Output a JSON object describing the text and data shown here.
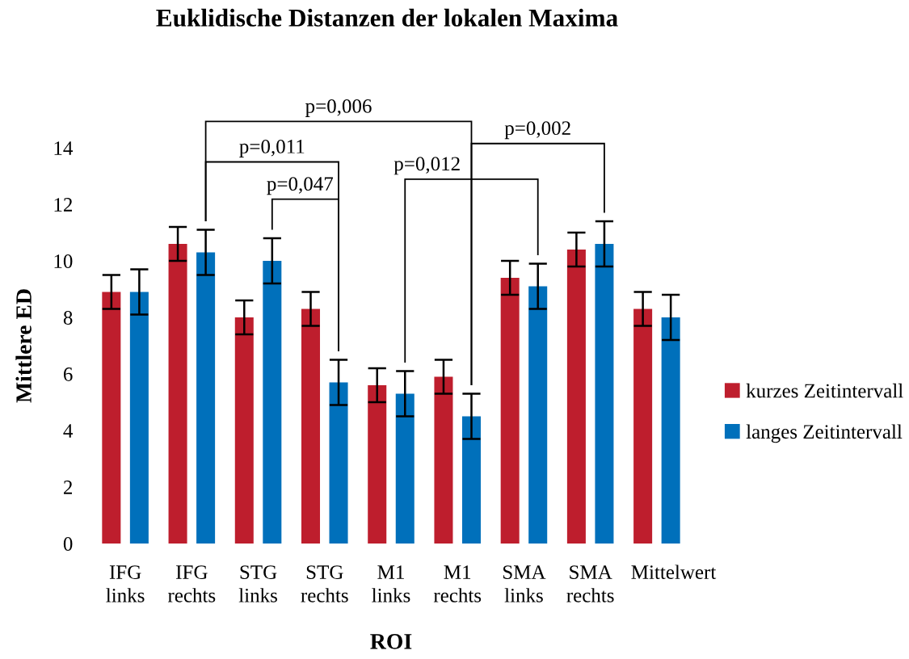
{
  "chart_data": {
    "type": "bar",
    "title": "Euklidische Distanzen der lokalen Maxima",
    "xlabel": "ROI",
    "ylabel": "Mittlere ED",
    "categories": [
      "IFG links",
      "IFG rechts",
      "STG links",
      "STG rechts",
      "M1 links",
      "M1 rechts",
      "SMA links",
      "SMA rechts",
      "Mittelwert"
    ],
    "series": [
      {
        "name": "kurzes Zeitintervall",
        "color": "#be1e2d",
        "values": [
          8.9,
          10.6,
          8.0,
          8.3,
          5.6,
          5.9,
          9.4,
          10.4,
          8.3
        ],
        "errors": [
          0.6,
          0.6,
          0.6,
          0.6,
          0.6,
          0.6,
          0.6,
          0.6,
          0.6
        ]
      },
      {
        "name": "langes Zeitintervall",
        "color": "#0070bb",
        "values": [
          8.9,
          10.3,
          10.0,
          5.7,
          5.3,
          4.5,
          9.1,
          10.6,
          8.0
        ],
        "errors": [
          0.8,
          0.8,
          0.8,
          0.8,
          0.8,
          0.8,
          0.8,
          0.8,
          0.8
        ]
      }
    ],
    "ylim": [
      0,
      14
    ],
    "yticks": [
      0,
      2,
      4,
      6,
      8,
      10,
      12,
      14
    ],
    "grid": false,
    "legend": "right",
    "annotations": [
      "p=0,006",
      "p=0,011",
      "p=0,047",
      "p=0,012",
      "p=0,002"
    ]
  }
}
